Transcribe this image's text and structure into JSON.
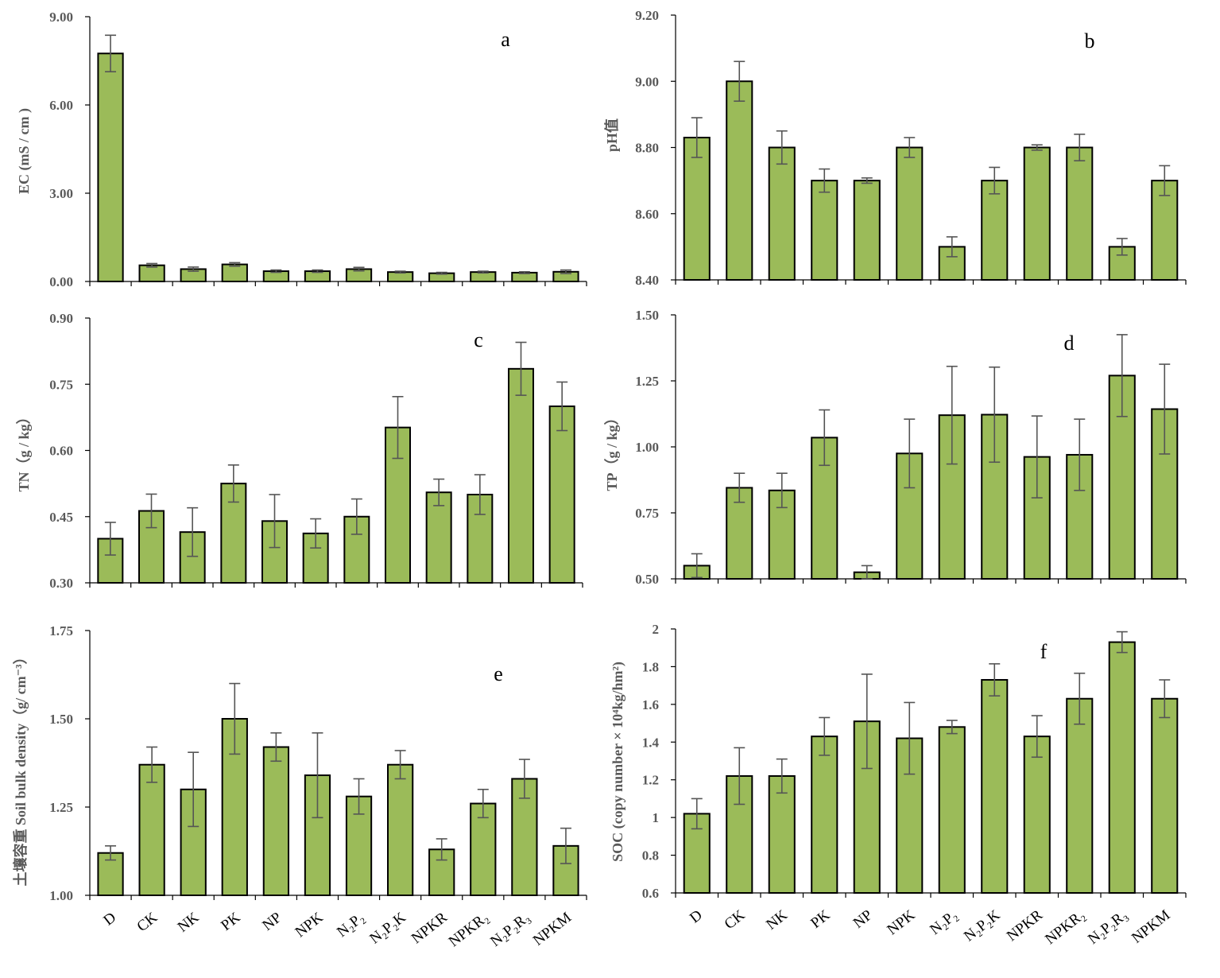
{
  "colors": {
    "bar_fill": "#9bbb59",
    "bar_stroke": "#000000",
    "error_bar": "#555555",
    "tick_text": "#595959"
  },
  "chart_data": [
    {
      "type": "bar",
      "panel_label": "a",
      "ylabel": "EC (mS / cm )",
      "ylim": [
        0,
        9
      ],
      "yticks": [
        "0.00",
        "3.00",
        "6.00",
        "9.00"
      ],
      "categories": [
        "D",
        "CK",
        "NK",
        "PK",
        "NP",
        "NPK",
        "N₂P₂",
        "N₂P₂K",
        "NPKR",
        "NPKR₂",
        "N₂P₂R₃",
        "NPKM"
      ],
      "values": [
        7.75,
        0.55,
        0.42,
        0.58,
        0.35,
        0.35,
        0.42,
        0.32,
        0.28,
        0.32,
        0.3,
        0.33
      ],
      "errors": [
        0.62,
        0.06,
        0.07,
        0.06,
        0.04,
        0.04,
        0.06,
        0.03,
        0.03,
        0.03,
        0.03,
        0.06
      ],
      "grid": false
    },
    {
      "type": "bar",
      "panel_label": "b",
      "ylabel": "pH值",
      "ylim": [
        8.4,
        9.2
      ],
      "yticks": [
        "8.40",
        "8.60",
        "8.80",
        "9.00",
        "9.20"
      ],
      "categories": [
        "D",
        "CK",
        "NK",
        "PK",
        "NP",
        "NPK",
        "N₂P₂",
        "N₂P₂K",
        "NPKR",
        "NPKR₂",
        "N₂P₂R₃",
        "NPKM"
      ],
      "values": [
        8.83,
        9.0,
        8.8,
        8.7,
        8.7,
        8.8,
        8.5,
        8.7,
        8.8,
        8.8,
        8.5,
        8.7
      ],
      "errors": [
        0.06,
        0.06,
        0.05,
        0.035,
        0.008,
        0.03,
        0.03,
        0.04,
        0.008,
        0.04,
        0.025,
        0.045
      ],
      "grid": false
    },
    {
      "type": "bar",
      "panel_label": "c",
      "ylabel": "TN（g / kg）",
      "ylim": [
        0.3,
        0.9
      ],
      "yticks": [
        "0.30",
        "0.45",
        "0.60",
        "0.75",
        "0.90"
      ],
      "categories": [
        "D",
        "CK",
        "NK",
        "PK",
        "NP",
        "NPK",
        "N₂P₂",
        "N₂P₂K",
        "NPKR",
        "NPKR₂",
        "N₂P₂R₃",
        "NPKM"
      ],
      "values": [
        0.4,
        0.463,
        0.415,
        0.525,
        0.44,
        0.412,
        0.45,
        0.652,
        0.505,
        0.5,
        0.785,
        0.7
      ],
      "errors": [
        0.037,
        0.038,
        0.055,
        0.042,
        0.06,
        0.033,
        0.04,
        0.07,
        0.03,
        0.045,
        0.06,
        0.055
      ],
      "grid": false
    },
    {
      "type": "bar",
      "panel_label": "d",
      "ylabel": "TP（g / kg）",
      "ylim": [
        0.5,
        1.5
      ],
      "yticks": [
        "0.50",
        "0.75",
        "1.00",
        "1.25",
        "1.50"
      ],
      "categories": [
        "D",
        "CK",
        "NK",
        "PK",
        "NP",
        "NPK",
        "N₂P₂",
        "N₂P₂K",
        "NPKR",
        "NPKR₂",
        "N₂P₂R₃",
        "NPKM"
      ],
      "values": [
        0.55,
        0.845,
        0.835,
        1.035,
        0.525,
        0.975,
        1.12,
        1.122,
        0.962,
        0.97,
        1.27,
        1.143
      ],
      "errors": [
        0.045,
        0.055,
        0.065,
        0.105,
        0.025,
        0.13,
        0.185,
        0.18,
        0.155,
        0.135,
        0.155,
        0.17
      ],
      "grid": false
    },
    {
      "type": "bar",
      "panel_label": "e",
      "ylabel": "土壤容重 Soil bulk density（g/ cm⁻³）",
      "ylim": [
        1.0,
        1.75
      ],
      "yticks": [
        "1.00",
        "1.25",
        "1.50",
        "1.75"
      ],
      "categories": [
        "D",
        "CK",
        "NK",
        "PK",
        "NP",
        "NPK",
        "N₂P₂",
        "N₂P₂K",
        "NPKR",
        "NPKR₂",
        "N₂P₂R₃",
        "NPKM"
      ],
      "values": [
        1.12,
        1.37,
        1.3,
        1.5,
        1.42,
        1.34,
        1.28,
        1.37,
        1.13,
        1.26,
        1.33,
        1.14
      ],
      "errors": [
        0.02,
        0.05,
        0.105,
        0.1,
        0.04,
        0.12,
        0.05,
        0.04,
        0.03,
        0.04,
        0.055,
        0.05
      ],
      "grid": false
    },
    {
      "type": "bar",
      "panel_label": "f",
      "ylabel": "SOC (copy number × 10⁴kg/hm²)",
      "ylim": [
        0.6,
        2.0
      ],
      "yticks": [
        "0.6",
        "0.8",
        "1",
        "1.2",
        "1.4",
        "1.6",
        "1.8",
        "2"
      ],
      "categories": [
        "D",
        "CK",
        "NK",
        "PK",
        "NP",
        "NPK",
        "N₂P₂",
        "N₂P₂K",
        "NPKR",
        "NPKR₂",
        "N₂P₂R₃",
        "NPKM"
      ],
      "values": [
        1.02,
        1.22,
        1.22,
        1.43,
        1.51,
        1.42,
        1.48,
        1.73,
        1.43,
        1.63,
        1.93,
        1.63
      ],
      "errors": [
        0.08,
        0.15,
        0.09,
        0.1,
        0.25,
        0.19,
        0.035,
        0.085,
        0.11,
        0.135,
        0.055,
        0.1
      ],
      "grid": false
    }
  ]
}
